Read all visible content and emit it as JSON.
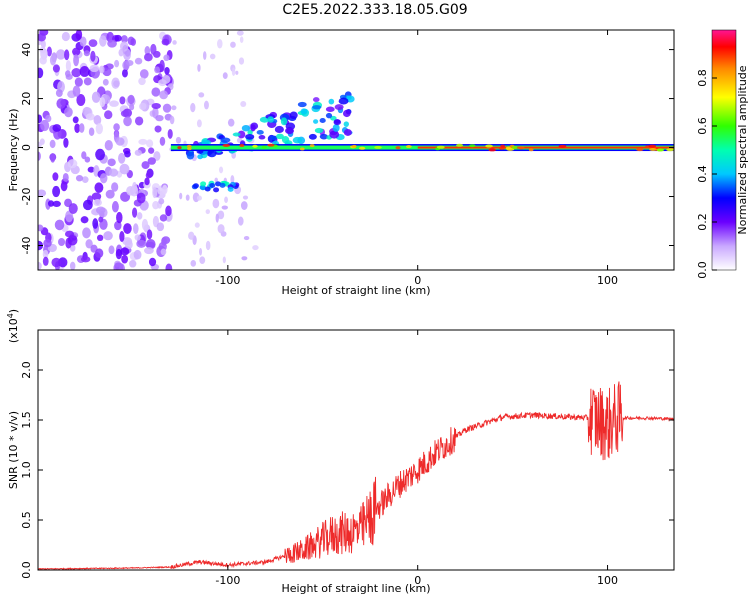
{
  "title": "C2E5.2022.333.18.05.G09",
  "chart_data": [
    {
      "type": "heatmap",
      "name": "spectrogram",
      "xlabel": "Height of straight line (km)",
      "ylabel": "Frequency (Hz)",
      "xlim": [
        -200,
        135
      ],
      "ylim": [
        -50,
        48
      ],
      "xticks": [
        -100,
        0,
        100
      ],
      "xtick_labels": [
        "-100",
        "0",
        "100"
      ],
      "yticks": [
        -40,
        -20,
        0,
        20,
        40
      ],
      "ytick_labels": [
        "-40",
        "-20",
        "0",
        "20",
        "40"
      ],
      "colorbar": {
        "label": "Normalized spectral amplitude",
        "range": [
          0,
          1
        ],
        "ticks": [
          0.0,
          0.2,
          0.4,
          0.6,
          0.8
        ],
        "tick_labels": [
          "0.0",
          "0.2",
          "0.4",
          "0.6",
          "0.8"
        ]
      },
      "features": [
        {
          "desc": "noise",
          "x_range": [
            -200,
            -130
          ],
          "freq_range": [
            -50,
            48
          ],
          "amplitude": 0.1
        },
        {
          "desc": "main_line",
          "x_range": [
            -130,
            135
          ],
          "freq": 0,
          "amplitude": 0.9
        },
        {
          "desc": "branch_up",
          "x_from": -120,
          "x_to": -35,
          "freq_from": -2,
          "freq_to": 15,
          "amplitude": 0.3
        },
        {
          "desc": "branch_low",
          "x_from": -120,
          "x_to": -95,
          "freq": -16,
          "amplitude": 0.3
        }
      ]
    },
    {
      "type": "line",
      "name": "snr",
      "xlabel": "Height of straight line (km)",
      "ylabel": "SNR (10 * v/v)",
      "ylabel_scale": "(x10",
      "ylabel_scale_exp": "4",
      "ylabel_scale_close": ")",
      "xlim": [
        -200,
        135
      ],
      "ylim": [
        0,
        2.4
      ],
      "xticks": [
        -100,
        0,
        100
      ],
      "xtick_labels": [
        "-100",
        "0",
        "100"
      ],
      "yticks": [
        0.0,
        0.5,
        1.0,
        1.5,
        2.0
      ],
      "ytick_labels": [
        "0.0",
        "0.5",
        "1.0",
        "1.5",
        "2.0"
      ],
      "color": "#ee2a2a",
      "envelope": {
        "x": [
          -200,
          -150,
          -130,
          -115,
          -100,
          -80,
          -60,
          -45,
          -30,
          -22,
          -10,
          0,
          10,
          25,
          45,
          60,
          80,
          92,
          100,
          105,
          120,
          135
        ],
        "y": [
          0.01,
          0.02,
          0.03,
          0.08,
          0.05,
          0.08,
          0.2,
          0.35,
          0.4,
          0.6,
          0.85,
          1.0,
          1.18,
          1.4,
          1.53,
          1.55,
          1.53,
          1.52,
          1.45,
          1.52,
          1.52,
          1.51
        ]
      }
    }
  ]
}
